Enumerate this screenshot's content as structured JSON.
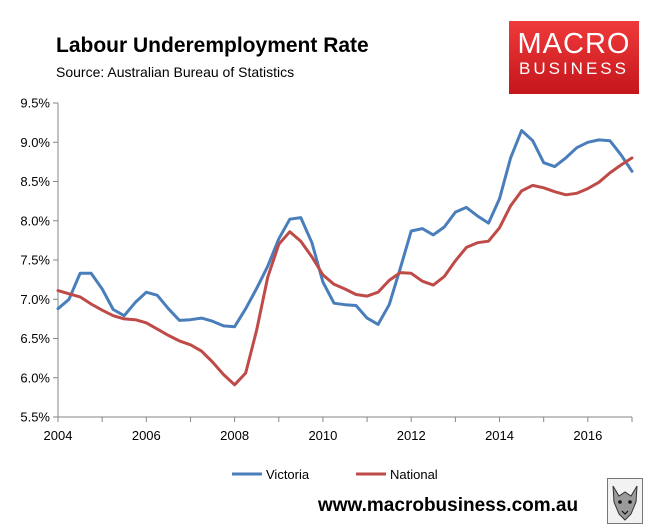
{
  "header": {
    "title": "Labour Underemployment Rate",
    "subtitle": "Source: Australian Bureau of Statistics"
  },
  "brand": {
    "logo_line1": "MACRO",
    "logo_line2": "BUSINESS",
    "website": "www.macrobusiness.com.au",
    "logo_color": "#d9252a"
  },
  "chart_data": {
    "type": "line",
    "title": "Labour Underemployment Rate",
    "xlabel": "",
    "ylabel": "",
    "xlim": [
      2004,
      2017
    ],
    "ylim": [
      5.5,
      9.5
    ],
    "x_ticks": [
      2004,
      2006,
      2008,
      2010,
      2012,
      2014,
      2016
    ],
    "x_tick_labels": [
      "2004",
      "2006",
      "2008",
      "2010",
      "2012",
      "2014",
      "2016"
    ],
    "y_ticks": [
      5.5,
      6.0,
      6.5,
      7.0,
      7.5,
      8.0,
      8.5,
      9.0,
      9.5
    ],
    "y_tick_labels": [
      "5.5%",
      "6.0%",
      "6.5%",
      "7.0%",
      "7.5%",
      "8.0%",
      "8.5%",
      "9.0%",
      "9.5%"
    ],
    "grid": false,
    "legend_position": "bottom",
    "x": [
      2004.0,
      2004.25,
      2004.5,
      2004.75,
      2005.0,
      2005.25,
      2005.5,
      2005.75,
      2006.0,
      2006.25,
      2006.5,
      2006.75,
      2007.0,
      2007.25,
      2007.5,
      2007.75,
      2008.0,
      2008.25,
      2008.5,
      2008.75,
      2009.0,
      2009.25,
      2009.5,
      2009.75,
      2010.0,
      2010.25,
      2010.5,
      2010.75,
      2011.0,
      2011.25,
      2011.5,
      2011.75,
      2012.0,
      2012.25,
      2012.5,
      2012.75,
      2013.0,
      2013.25,
      2013.5,
      2013.75,
      2014.0,
      2014.25,
      2014.5,
      2014.75,
      2015.0,
      2015.25,
      2015.5,
      2015.75,
      2016.0,
      2016.25,
      2016.5,
      2016.75,
      2017.0
    ],
    "series": [
      {
        "name": "Victoria",
        "color": "#4a7ebb",
        "values": [
          6.88,
          7.0,
          7.33,
          7.33,
          7.13,
          6.87,
          6.79,
          6.96,
          7.09,
          7.05,
          6.88,
          6.73,
          6.74,
          6.76,
          6.72,
          6.66,
          6.65,
          6.88,
          7.14,
          7.42,
          7.77,
          8.02,
          8.04,
          7.72,
          7.22,
          6.95,
          6.93,
          6.92,
          6.76,
          6.68,
          6.93,
          7.39,
          7.87,
          7.9,
          7.82,
          7.92,
          8.11,
          8.17,
          8.06,
          7.97,
          8.28,
          8.8,
          9.15,
          9.02,
          8.74,
          8.69,
          8.8,
          8.93,
          9.0,
          9.03,
          9.02,
          8.84,
          8.63
        ]
      },
      {
        "name": "National",
        "color": "#be4b48",
        "values": [
          7.11,
          7.07,
          7.03,
          6.94,
          6.86,
          6.79,
          6.75,
          6.74,
          6.7,
          6.62,
          6.54,
          6.47,
          6.42,
          6.34,
          6.2,
          6.04,
          5.91,
          6.06,
          6.61,
          7.28,
          7.7,
          7.86,
          7.74,
          7.54,
          7.31,
          7.19,
          7.13,
          7.06,
          7.04,
          7.09,
          7.24,
          7.34,
          7.33,
          7.23,
          7.18,
          7.29,
          7.49,
          7.66,
          7.72,
          7.74,
          7.91,
          8.19,
          8.38,
          8.45,
          8.42,
          8.37,
          8.33,
          8.35,
          8.41,
          8.49,
          8.61,
          8.71,
          8.8
        ]
      }
    ]
  }
}
